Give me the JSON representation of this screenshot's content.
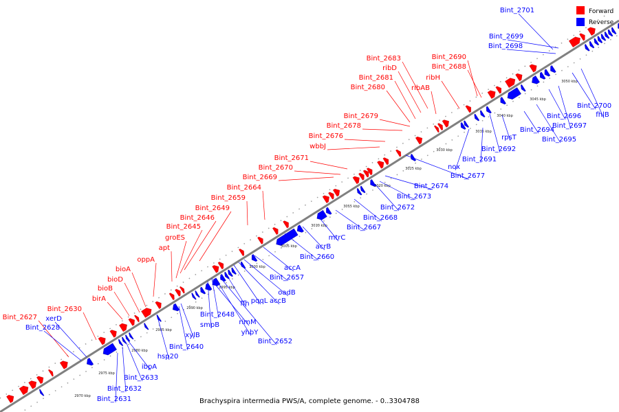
{
  "caption": "Brachyspira intermedia PWS/A, complete genome. - 0..3304788",
  "legend": [
    {
      "label": "Forward",
      "color": "#ff0000"
    },
    {
      "label": "Reverse",
      "color": "#0000ff"
    }
  ],
  "colors": {
    "forward": "#ff0000",
    "reverse": "#0000ff",
    "backbone": "#808080"
  },
  "ticks": [
    "2970 kbp",
    "2975 kbp",
    "2980 kbp",
    "2985 kbp",
    "2990 kbp",
    "2995 kbp",
    "3000 kbp",
    "3005 kbp",
    "3010 kbp",
    "3015 kbp",
    "3020 kbp",
    "3025 kbp",
    "3030 kbp",
    "3035 kbp",
    "3040 kbp",
    "3045 kbp",
    "3050 kbp"
  ],
  "forward_labels": [
    "Bint_2627",
    "Bint_2630",
    "birA",
    "bioB",
    "bioD",
    "bioA",
    "oppA",
    "apt",
    "groES",
    "Bint_2645",
    "Bint_2646",
    "Bint_2649",
    "Bint_2659",
    "Bint_2664",
    "Bint_2669",
    "Bint_2670",
    "Bint_2671",
    "wbbJ",
    "Bint_2676",
    "Bint_2678",
    "Bint_2679",
    "Bint_2680",
    "Bint_2681",
    "ribD",
    "Bint_2683",
    "ribH",
    "ribAB",
    "Bint_2688",
    "Bint_2690"
  ],
  "reverse_labels": [
    "Bint_2628",
    "xerD",
    "Bint_2631",
    "Bint_2632",
    "Bint_2633",
    "ibpA",
    "hsp20",
    "Bint_2640",
    "xylB",
    "smpB",
    "Bint_2648",
    "rimM",
    "yhbY",
    "Bint_2652",
    "ffh",
    "pqqL",
    "accB",
    "oadB",
    "Bint_2657",
    "accA",
    "Bint_2660",
    "acrB",
    "mtrC",
    "Bint_2667",
    "Bint_2668",
    "Bint_2672",
    "Bint_2673",
    "Bint_2674",
    "Bint_2677",
    "nox",
    "Bint_2691",
    "Bint_2692",
    "rpsT",
    "Bint_2694",
    "Bint_2695",
    "Bint_2696",
    "Bint_2697",
    "fhlB",
    "Bint_2700",
    "Bint_2698",
    "Bint_2699",
    "Bint_2701"
  ]
}
